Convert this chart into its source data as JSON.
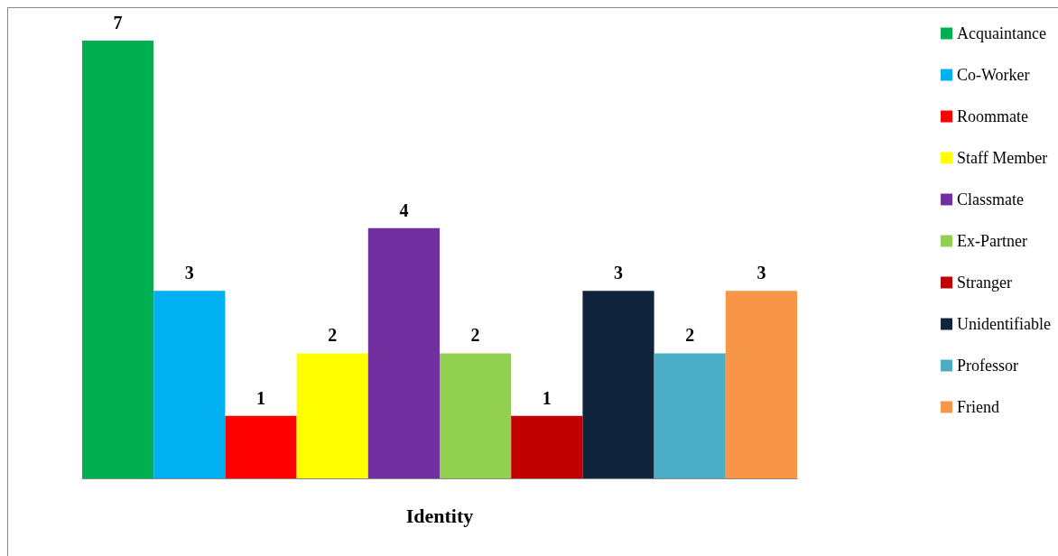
{
  "chart_data": {
    "type": "bar",
    "xlabel": "Identity",
    "categories": [
      null,
      null,
      null,
      null,
      null,
      null,
      null,
      null,
      null,
      null
    ],
    "stacked": true,
    "data_labels": true,
    "legend": "right",
    "series": [
      {
        "name": "Acquaintance",
        "color": "#00b050",
        "values": [
          7,
          null,
          null,
          null,
          null,
          null,
          null,
          null,
          null,
          null
        ]
      },
      {
        "name": "Co-Worker",
        "color": "#00b0f0",
        "values": [
          null,
          3,
          null,
          null,
          null,
          null,
          null,
          null,
          null,
          null
        ]
      },
      {
        "name": "Roommate",
        "color": "#ff0000",
        "values": [
          null,
          null,
          1,
          null,
          null,
          null,
          null,
          null,
          null,
          null
        ]
      },
      {
        "name": "Staff Member",
        "color": "#ffff00",
        "values": [
          null,
          null,
          null,
          2,
          null,
          null,
          null,
          null,
          null,
          null
        ]
      },
      {
        "name": "Classmate",
        "color": "#7030a0",
        "values": [
          null,
          null,
          null,
          null,
          4,
          null,
          null,
          null,
          null,
          null
        ]
      },
      {
        "name": "Ex-Partner",
        "color": "#92d050",
        "values": [
          null,
          null,
          null,
          null,
          null,
          2,
          null,
          null,
          null,
          null
        ]
      },
      {
        "name": "Stranger",
        "color": "#c00000",
        "values": [
          null,
          null,
          null,
          null,
          null,
          null,
          1,
          null,
          null,
          null
        ]
      },
      {
        "name": "Unidentifiable",
        "color": "#10243e",
        "values": [
          null,
          null,
          null,
          null,
          null,
          null,
          null,
          3,
          null,
          null
        ]
      },
      {
        "name": "Professor",
        "color": "#4bacc6",
        "values": [
          null,
          null,
          null,
          null,
          null,
          null,
          null,
          null,
          2,
          null
        ]
      },
      {
        "name": "Friend",
        "color": "#f79646",
        "values": [
          null,
          null,
          null,
          null,
          null,
          null,
          null,
          null,
          null,
          3
        ]
      }
    ]
  }
}
